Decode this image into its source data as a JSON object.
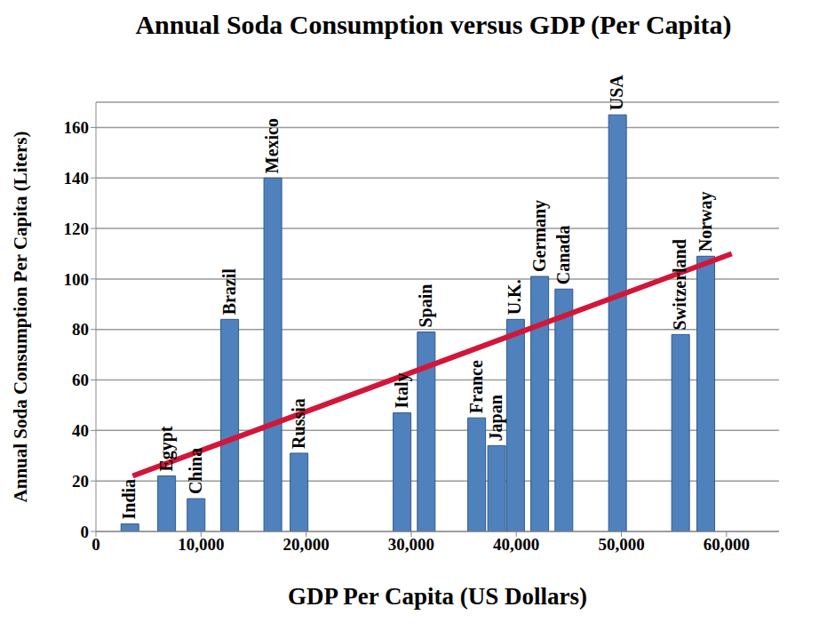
{
  "chart_data": {
    "type": "bar",
    "title": "Annual Soda Consumption versus GDP (Per Capita)",
    "x_label": "GDP Per Capita (US Dollars)",
    "y_label": "Annual Soda Consumption Per Capita (Liters)",
    "categories": [
      "India",
      "Egypt",
      "China",
      "Brazil",
      "Mexico",
      "Russia",
      "Italy",
      "Spain",
      "France",
      "Japan",
      "U.K.",
      "Germany",
      "Canada",
      "USA",
      "Switzerland",
      "Norway"
    ],
    "x": [
      3200,
      6700,
      9500,
      12700,
      16800,
      19300,
      29100,
      31400,
      36200,
      38100,
      39900,
      42200,
      44500,
      49600,
      55600,
      58000
    ],
    "values": [
      3,
      22,
      13,
      84,
      140,
      31,
      47,
      79,
      45,
      34,
      84,
      101,
      96,
      165,
      78,
      109
    ],
    "color": "#4f81bd",
    "xlim": [
      0,
      65000
    ],
    "xticks": [
      0,
      {
        "value": 10000,
        "label": "10,000"
      },
      {
        "value": 20000,
        "label": "20,000"
      },
      {
        "value": 30000,
        "label": "30,000"
      },
      {
        "value": 40000,
        "label": "40,000"
      },
      {
        "value": 50000,
        "label": "50,000"
      },
      {
        "value": 60000,
        "label": "60,000"
      }
    ],
    "ylim": [
      0,
      170
    ],
    "yticks": [
      0,
      20,
      40,
      60,
      80,
      100,
      120,
      140,
      160
    ],
    "grid": true,
    "trend_line": {
      "x": [
        3500,
        60500
      ],
      "values": [
        22,
        110
      ],
      "color": "#d2163a"
    }
  }
}
